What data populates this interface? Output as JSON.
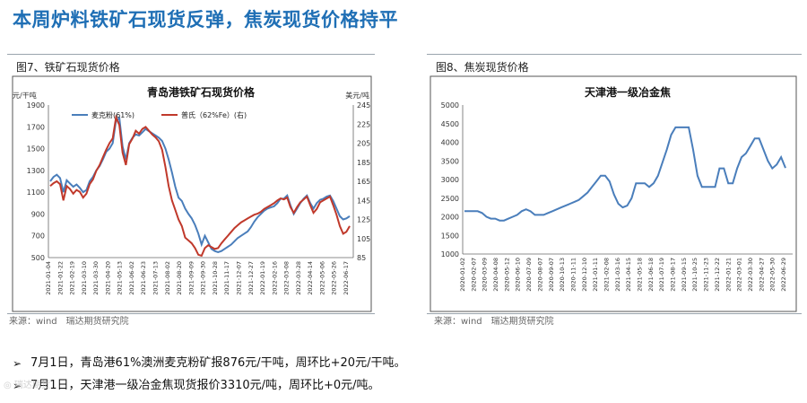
{
  "page": {
    "title": "本周炉料铁矿石现货反弹，焦炭现货价格持平",
    "left_figure_label": "图7、铁矿石现货价格",
    "right_figure_label": "图8、焦炭现货价格",
    "left_source": "来源：wind　瑞达期货研究院",
    "right_source": "来源：wind　瑞达期货研究院",
    "bullets": [
      "7月1日，青岛港61%澳洲麦克粉矿报876元/干吨，周环比+20元/干吨。",
      "7月1日，天津港一级冶金焦现货报价3310元/吨，周环比+0元/吨。"
    ],
    "watermark": "◎ 瑞达期货"
  },
  "colors": {
    "title": "#1f6fb5",
    "series_blue": "#4a7ebb",
    "series_red": "#c0392b"
  },
  "chart_data": [
    {
      "type": "line",
      "title": "青岛港铁矿石现货价格",
      "ylabel_left": "元/干吨",
      "ylabel_right": "美元/吨",
      "ylim_left": [
        500,
        1900
      ],
      "yticks_left": [
        500,
        700,
        900,
        1100,
        1300,
        1500,
        1700,
        1900
      ],
      "ylim_right": [
        85,
        245
      ],
      "yticks_right": [
        85,
        105,
        125,
        145,
        165,
        185,
        205,
        225,
        245
      ],
      "xticks": [
        "2021-01-04",
        "2021-01-22",
        "2021-02-19",
        "2021-03-10",
        "2021-03-30",
        "2021-04-20",
        "2021-05-13",
        "2021-06-02",
        "2021-06-23",
        "2021-07-13",
        "2021-08-02",
        "2021-08-20",
        "2021-09-09",
        "2021-09-30",
        "2021-10-28",
        "2021-11-17",
        "2021-12-07",
        "2021-12-27",
        "2022-01-19",
        "2022-02-16",
        "2022-03-08",
        "2022-03-28",
        "2022-04-14",
        "2022-05-06",
        "2022-05-26",
        "2022-06-17"
      ],
      "legend": [
        "麦克粉(61%)",
        "普氏（62%Fe）(右)"
      ],
      "series": [
        {
          "name": "麦克粉(61%)",
          "axis": "left",
          "values": [
            1200,
            1240,
            1260,
            1230,
            1100,
            1210,
            1180,
            1150,
            1170,
            1140,
            1100,
            1120,
            1200,
            1240,
            1300,
            1340,
            1400,
            1470,
            1500,
            1550,
            1760,
            1780,
            1520,
            1400,
            1550,
            1600,
            1630,
            1620,
            1650,
            1680,
            1660,
            1640,
            1620,
            1600,
            1570,
            1500,
            1400,
            1280,
            1150,
            1050,
            1020,
            950,
            900,
            860,
            800,
            720,
            620,
            700,
            640,
            580,
            560,
            550,
            560,
            580,
            600,
            620,
            650,
            680,
            700,
            720,
            740,
            780,
            830,
            870,
            900,
            930,
            950,
            960,
            970,
            1000,
            1040,
            1040,
            1070,
            980,
            900,
            950,
            1000,
            1040,
            1070,
            1000,
            950,
            1000,
            1030,
            1040,
            1060,
            1070,
            1020,
            950,
            880,
            850,
            860,
            880
          ]
        },
        {
          "name": "普氏（62%Fe）(右)",
          "axis": "right",
          "values": [
            160,
            163,
            165,
            162,
            145,
            160,
            157,
            152,
            156,
            154,
            148,
            152,
            162,
            167,
            176,
            182,
            190,
            198,
            205,
            210,
            232,
            224,
            195,
            182,
            204,
            210,
            218,
            215,
            220,
            222,
            218,
            214,
            211,
            207,
            198,
            180,
            160,
            145,
            135,
            125,
            118,
            106,
            103,
            100,
            95,
            88,
            87,
            95,
            98,
            96,
            94,
            95,
            100,
            104,
            108,
            112,
            116,
            119,
            122,
            124,
            126,
            128,
            130,
            131,
            133,
            136,
            138,
            140,
            142,
            145,
            147,
            146,
            148,
            138,
            132,
            138,
            143,
            146,
            149,
            140,
            132,
            136,
            143,
            145,
            147,
            149,
            140,
            130,
            118,
            110,
            112,
            118
          ]
        }
      ]
    },
    {
      "type": "line",
      "title": "天津港一级冶金焦",
      "ylim": [
        1000,
        5000
      ],
      "yticks": [
        1000,
        1500,
        2000,
        2500,
        3000,
        3500,
        4000,
        4500,
        5000
      ],
      "xticks": [
        "2020-01-02",
        "2020-02-07",
        "2020-03-09",
        "2020-04-08",
        "2020-05-12",
        "2020-06-10",
        "2020-07-09",
        "2020-08-07",
        "2020-09-07",
        "2020-10-13",
        "2020-11-11",
        "2020-12-10",
        "2021-01-11",
        "2021-02-08",
        "2021-03-16",
        "2021-04-15",
        "2021-05-18",
        "2021-06-18",
        "2021-07-19",
        "2021-08-17",
        "2021-09-15",
        "2021-10-25",
        "2021-11-23",
        "2021-12-22",
        "2022-01-21",
        "2022-03-01",
        "2022-03-30",
        "2022-04-27",
        "2022-05-30",
        "2022-06-29"
      ],
      "series": [
        {
          "name": "天津港一级冶金焦",
          "values": [
            2150,
            2150,
            2150,
            2150,
            2100,
            2000,
            1950,
            1950,
            1900,
            1900,
            1950,
            2000,
            2050,
            2150,
            2200,
            2150,
            2050,
            2050,
            2050,
            2100,
            2150,
            2200,
            2250,
            2300,
            2350,
            2400,
            2450,
            2550,
            2650,
            2800,
            2950,
            3100,
            3100,
            2950,
            2600,
            2350,
            2250,
            2300,
            2500,
            2900,
            2900,
            2900,
            2800,
            2900,
            3100,
            3450,
            3800,
            4200,
            4400,
            4400,
            4400,
            4400,
            3800,
            3100,
            2800,
            2800,
            2800,
            2800,
            3300,
            3300,
            2900,
            2900,
            3300,
            3600,
            3700,
            3900,
            4100,
            4100,
            3800,
            3500,
            3300,
            3400,
            3600,
            3310
          ]
        }
      ]
    }
  ]
}
